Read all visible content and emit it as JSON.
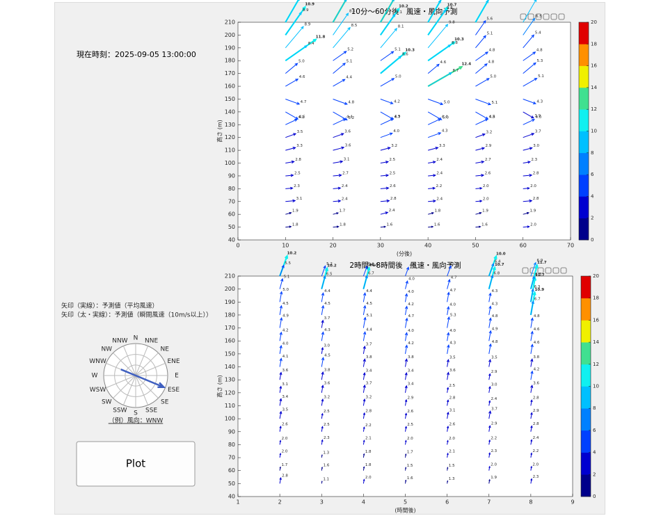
{
  "panel": {
    "current_time": "現在時刻：2025-09-05 13:00:00",
    "legend_mean": "矢印（実線）：予測値（平均風速）",
    "legend_gust": "矢印（太・実線）：予測値（瞬間風速（10m/s以上））",
    "compass": [
      "N",
      "NNE",
      "NE",
      "ENE",
      "E",
      "ESE",
      "SE",
      "SSE",
      "S",
      "SSW",
      "SW",
      "WSW",
      "W",
      "WNW",
      "NW",
      "NNW"
    ],
    "compass_example": "（例）風向：WNW",
    "button": "Plot"
  },
  "chart_data": [
    {
      "type": "quiver",
      "title": "10分～60分後　風速・風向予測",
      "xlabel": "(分後)",
      "ylabel": "高さ (m)",
      "xlim": [
        0,
        70
      ],
      "xticks": [
        0,
        10,
        20,
        30,
        40,
        50,
        60,
        70
      ],
      "ylim": [
        40,
        210
      ],
      "yticks": [
        40,
        50,
        60,
        70,
        80,
        90,
        100,
        110,
        120,
        130,
        140,
        150,
        160,
        170,
        180,
        190,
        200,
        210
      ],
      "heights": [
        50,
        60,
        70,
        80,
        90,
        100,
        110,
        120,
        130,
        140,
        150,
        160,
        170,
        180,
        190,
        200,
        210
      ],
      "directions": [
        5,
        15,
        5,
        5,
        5,
        10,
        15,
        20,
        25,
        -30,
        -20,
        30,
        40,
        35,
        50,
        55,
        60
      ],
      "clim": [
        0,
        20
      ],
      "cticks": [
        0,
        2,
        4,
        6,
        8,
        10,
        12,
        14,
        16,
        18,
        20
      ],
      "colormap": [
        "#00008b",
        "#0000d0",
        "#0040ff",
        "#0080ff",
        "#00c0ff",
        "#10f0f0",
        "#40e090",
        "#f0f000",
        "#ff9000",
        "#e00000"
      ],
      "series": [
        {
          "x": 10,
          "values": [
            1.8,
            1.9,
            3.1,
            2.3,
            2.5,
            2.8,
            3.3,
            3.5,
            4.1,
            4.6,
            4.7,
            4.6,
            5.0,
            8.4,
            8.9,
            8.9,
            8.9
          ],
          "value_labels": [
            "1.8",
            "1.9",
            "3.1",
            "2.3",
            "2.5",
            "2.8",
            "3.3",
            "3.5",
            "4.1",
            "4.6",
            "4.7",
            "4.6",
            "5.0",
            "8.4",
            "8.9",
            "8.9",
            "8.9"
          ],
          "gusts": [
            null,
            null,
            null,
            null,
            null,
            null,
            null,
            null,
            null,
            null,
            null,
            null,
            null,
            11.8,
            null,
            10.9,
            10.9
          ]
        },
        {
          "x": 20,
          "values": [
            1.8,
            1.7,
            2.4,
            2.4,
            2.7,
            3.1,
            3.6,
            3.6,
            4.4,
            5.2,
            4.8,
            4.4,
            5.1,
            5.2,
            8.5,
            8.5,
            8.6
          ],
          "gusts": [
            null,
            null,
            null,
            null,
            null,
            null,
            null,
            null,
            null,
            null,
            null,
            null,
            null,
            null,
            null,
            null,
            12.2
          ]
        },
        {
          "x": 30,
          "values": [
            1.6,
            2.4,
            2.8,
            2.6,
            2.5,
            2.5,
            3.2,
            4.0,
            4.5,
            4.7,
            4.2,
            5.0,
            8.6,
            5.1,
            8.1,
            8.1,
            8.7
          ],
          "value_labels": [
            "1.6",
            "2.4",
            "2.8",
            "2.6",
            "2.5",
            "2.5",
            "3.2",
            "4.0",
            "4.5",
            "4.7",
            "4.2",
            "5.0",
            "8.6",
            "5.1",
            "8.1",
            "8.1",
            "8.7"
          ],
          "gusts": [
            null,
            null,
            null,
            null,
            null,
            null,
            null,
            null,
            null,
            null,
            null,
            null,
            10.3,
            null,
            null,
            10.2,
            12.5
          ]
        },
        {
          "x": 40,
          "values": [
            1.6,
            1.8,
            2.4,
            2.2,
            2.4,
            2.4,
            3.3,
            4.3,
            4.4,
            5.0,
            5.0,
            8.7,
            4.6,
            8.8,
            9.8,
            9.8,
            8.1
          ],
          "value_labels": [
            "1.6",
            "1.8",
            "2.4",
            "2.2",
            "2.4",
            "2.4",
            "3.3",
            "4.3",
            "4.4",
            "5.0",
            "5.0",
            "8.7",
            "4.6",
            "8.8",
            "9.8",
            "9.8",
            "8.1"
          ],
          "gusts": [
            null,
            null,
            null,
            null,
            null,
            null,
            null,
            null,
            null,
            null,
            null,
            12.4,
            null,
            10.3,
            null,
            10.7,
            11.4
          ]
        },
        {
          "x": 50,
          "values": [
            1.6,
            1.9,
            2.0,
            2.0,
            2.6,
            2.7,
            2.9,
            3.2,
            4.3,
            4.6,
            5.1,
            5.0,
            4.8,
            4.8,
            5.1,
            5.6,
            8.1
          ],
          "value_labels": [
            "1.6",
            "1.9",
            "2.0",
            "2.0",
            "2.6",
            "2.7",
            "2.9",
            "3.2",
            "4.3",
            "4.6",
            "5.1",
            "5.0",
            "4.8",
            "4.8",
            "5.1",
            "5.6",
            "8.1"
          ],
          "gusts": [
            null,
            null,
            null,
            null,
            null,
            null,
            null,
            null,
            null,
            null,
            null,
            null,
            null,
            null,
            null,
            null,
            11.0
          ],
          "gust_labels": [
            null,
            null,
            null,
            null,
            null,
            null,
            null,
            null,
            null,
            null,
            null,
            null,
            null,
            null,
            null,
            null,
            "11.0"
          ]
        },
        {
          "x": 60,
          "values": [
            2.0,
            1.9,
            2.8,
            2.0,
            2.8,
            2.3,
            3.0,
            3.7,
            4.0,
            3.9,
            4.3,
            5.1,
            5.3,
            4.8,
            5.4,
            6.5,
            8.5
          ],
          "value_labels": [
            "2.0",
            "1.9",
            "2.8",
            "2.0",
            "2.8",
            "2.3",
            "3.0",
            "3.7",
            "4.0",
            "3.9",
            "4.3",
            "5.1",
            "5.3",
            "4.8",
            "5.4",
            "6.5",
            "8.5"
          ]
        }
      ]
    },
    {
      "type": "quiver",
      "title": "2時間～8時間後　風速・風向予測",
      "xlabel": "(時間後)",
      "ylabel": "高さ (m)",
      "xlim": [
        1,
        9
      ],
      "xticks": [
        1,
        2,
        3,
        4,
        5,
        6,
        7,
        8,
        9
      ],
      "ylim": [
        40,
        210
      ],
      "yticks": [
        40,
        50,
        60,
        70,
        80,
        90,
        100,
        110,
        120,
        130,
        140,
        150,
        160,
        170,
        180,
        190,
        200,
        210
      ],
      "heights": [
        50,
        60,
        70,
        80,
        90,
        100,
        110,
        120,
        130,
        140,
        150,
        160,
        170,
        180,
        190,
        200,
        210
      ],
      "directions": [
        80,
        80,
        80,
        80,
        80,
        80,
        80,
        80,
        80,
        80,
        80,
        80,
        80,
        80,
        80,
        75,
        70
      ],
      "clim": [
        0,
        20
      ],
      "cticks": [
        0,
        2,
        4,
        6,
        8,
        10,
        12,
        14,
        16,
        18,
        20
      ],
      "colormap": [
        "#00008b",
        "#0000d0",
        "#0040ff",
        "#0080ff",
        "#00c0ff",
        "#10f0f0",
        "#40e090",
        "#f0f000",
        "#ff9000",
        "#e00000"
      ],
      "series": [
        {
          "x": 2,
          "values": [
            2.8,
            1.7,
            2.0,
            2.0,
            2.6,
            3.5,
            3.4,
            3.1,
            3.6,
            4.1,
            4.0,
            4.2,
            4.9,
            4.5,
            5.0,
            5.1,
            5.5
          ],
          "value_labels": [
            "2.8",
            "1.7",
            "2.0",
            "2.0",
            "2.6",
            "3.5",
            "3.4",
            "3.1",
            "3.6",
            "4.1",
            "4.0",
            "4.2",
            "4.9",
            "4.5",
            "5.0",
            "5.1",
            "5.5"
          ],
          "gusts": [
            null,
            null,
            null,
            null,
            null,
            null,
            null,
            null,
            null,
            null,
            null,
            null,
            null,
            null,
            null,
            null,
            10.2
          ]
        },
        {
          "x": 3,
          "values": [
            1.1,
            1.6,
            1.3,
            2.3,
            2.5,
            2.5,
            3.2,
            3.6,
            3.8,
            4.5,
            3.0,
            4.3,
            3.7,
            4.5,
            4.4,
            6.5,
            5.2
          ],
          "value_labels": [
            "1.1",
            "1.6",
            "1.3",
            "2.3",
            "2.5",
            "2.5",
            "3.2",
            "3.6",
            "3.8",
            "4.5",
            "3.0",
            "4.3",
            "3.7",
            "4.5",
            "4.4",
            "6.5",
            "5.2"
          ],
          "gusts": [
            null,
            null,
            null,
            null,
            null,
            null,
            null,
            null,
            null,
            null,
            null,
            null,
            null,
            null,
            null,
            10.2,
            null
          ]
        },
        {
          "x": 4,
          "values": [
            2.0,
            1.8,
            1.8,
            2.1,
            2.2,
            2.8,
            3.2,
            3.7,
            3.4,
            3.8,
            3.7,
            4.4,
            5.1,
            4.5,
            4.4,
            6.7,
            5.0
          ],
          "value_labels": [
            "2.0",
            "1.8",
            "1.8",
            "2.1",
            "2.2",
            "2.8",
            "3.2",
            "3.7",
            "3.4",
            "3.8",
            "3.7",
            "4.4",
            "5.1",
            "4.5",
            "4.4",
            "6.7",
            "5.0"
          ],
          "gusts": [
            null,
            null,
            null,
            null,
            null,
            null,
            null,
            null,
            null,
            null,
            null,
            null,
            null,
            null,
            null,
            10.5,
            null
          ]
        },
        {
          "x": 5,
          "values": [
            1.6,
            1.5,
            1.7,
            2.0,
            2.5,
            2.6,
            2.9,
            3.4,
            3.4,
            3.8,
            4.2,
            4.0,
            4.7,
            4.2,
            4.0,
            4.0,
            4.5
          ],
          "value_labels": [
            "1.6",
            "1.5",
            "1.7",
            "2.0",
            "2.5",
            "2.6",
            "2.9",
            "3.4",
            "3.4",
            "3.8",
            "4.2",
            "4.0",
            "4.7",
            "4.2",
            "4.0",
            "4.0",
            "4.5"
          ]
        },
        {
          "x": 6,
          "values": [
            1.3,
            1.5,
            2.1,
            2.0,
            2.6,
            3.1,
            2.8,
            2.5,
            3.6,
            3.5,
            4.3,
            4.0,
            5.3,
            4.0,
            4.7,
            4.7,
            5.2
          ],
          "value_labels": [
            "1.3",
            "1.5",
            "2.1",
            "2.0",
            "2.6",
            "3.1",
            "2.8",
            "2.5",
            "3.6",
            "3.5",
            "4.3",
            "4.0",
            "5.3",
            "4.0",
            "4.7",
            "4.7",
            "5.2"
          ]
        },
        {
          "x": 7,
          "values": [
            1.9,
            2.0,
            2.3,
            2.2,
            2.9,
            3.7,
            2.4,
            3.0,
            2.9,
            3.5,
            4.8,
            4.9,
            4.8,
            4.3,
            4.3,
            6.8,
            6.4
          ],
          "value_labels": [
            "1.9",
            "2.0",
            "2.3",
            "2.2",
            "2.9",
            "3.7",
            "2.4",
            "3.0",
            "2.9",
            "3.5",
            "4.8",
            "4.9",
            "4.8",
            "4.3",
            "4.3",
            "6.8",
            "6.4"
          ],
          "gusts": [
            null,
            null,
            null,
            null,
            null,
            null,
            null,
            null,
            null,
            null,
            null,
            null,
            null,
            null,
            null,
            10.7,
            10.0
          ],
          "gust_labels": [
            null,
            null,
            null,
            null,
            null,
            null,
            null,
            null,
            null,
            null,
            null,
            null,
            null,
            null,
            null,
            "10.7",
            "10.0"
          ]
        },
        {
          "x": 8,
          "values": [
            2.3,
            2.0,
            2.2,
            2.4,
            2.8,
            2.9,
            2.8,
            3.6,
            4.2,
            3.8,
            4.6,
            4.6,
            4.8,
            6.7,
            6.3,
            6.3,
            6.9
          ],
          "value_labels": [
            "2.3",
            "2.0",
            "2.2",
            "2.4",
            "2.8",
            "2.9",
            "2.8",
            "3.6",
            "4.2",
            "3.8",
            "4.6",
            "4.6",
            "4.8",
            "6.7",
            "6.3",
            "6.3",
            "6.9"
          ],
          "gusts": [
            null,
            null,
            null,
            null,
            null,
            null,
            null,
            null,
            null,
            null,
            null,
            null,
            null,
            10.9,
            11.7,
            11.7,
            null
          ]
        }
      ]
    }
  ]
}
